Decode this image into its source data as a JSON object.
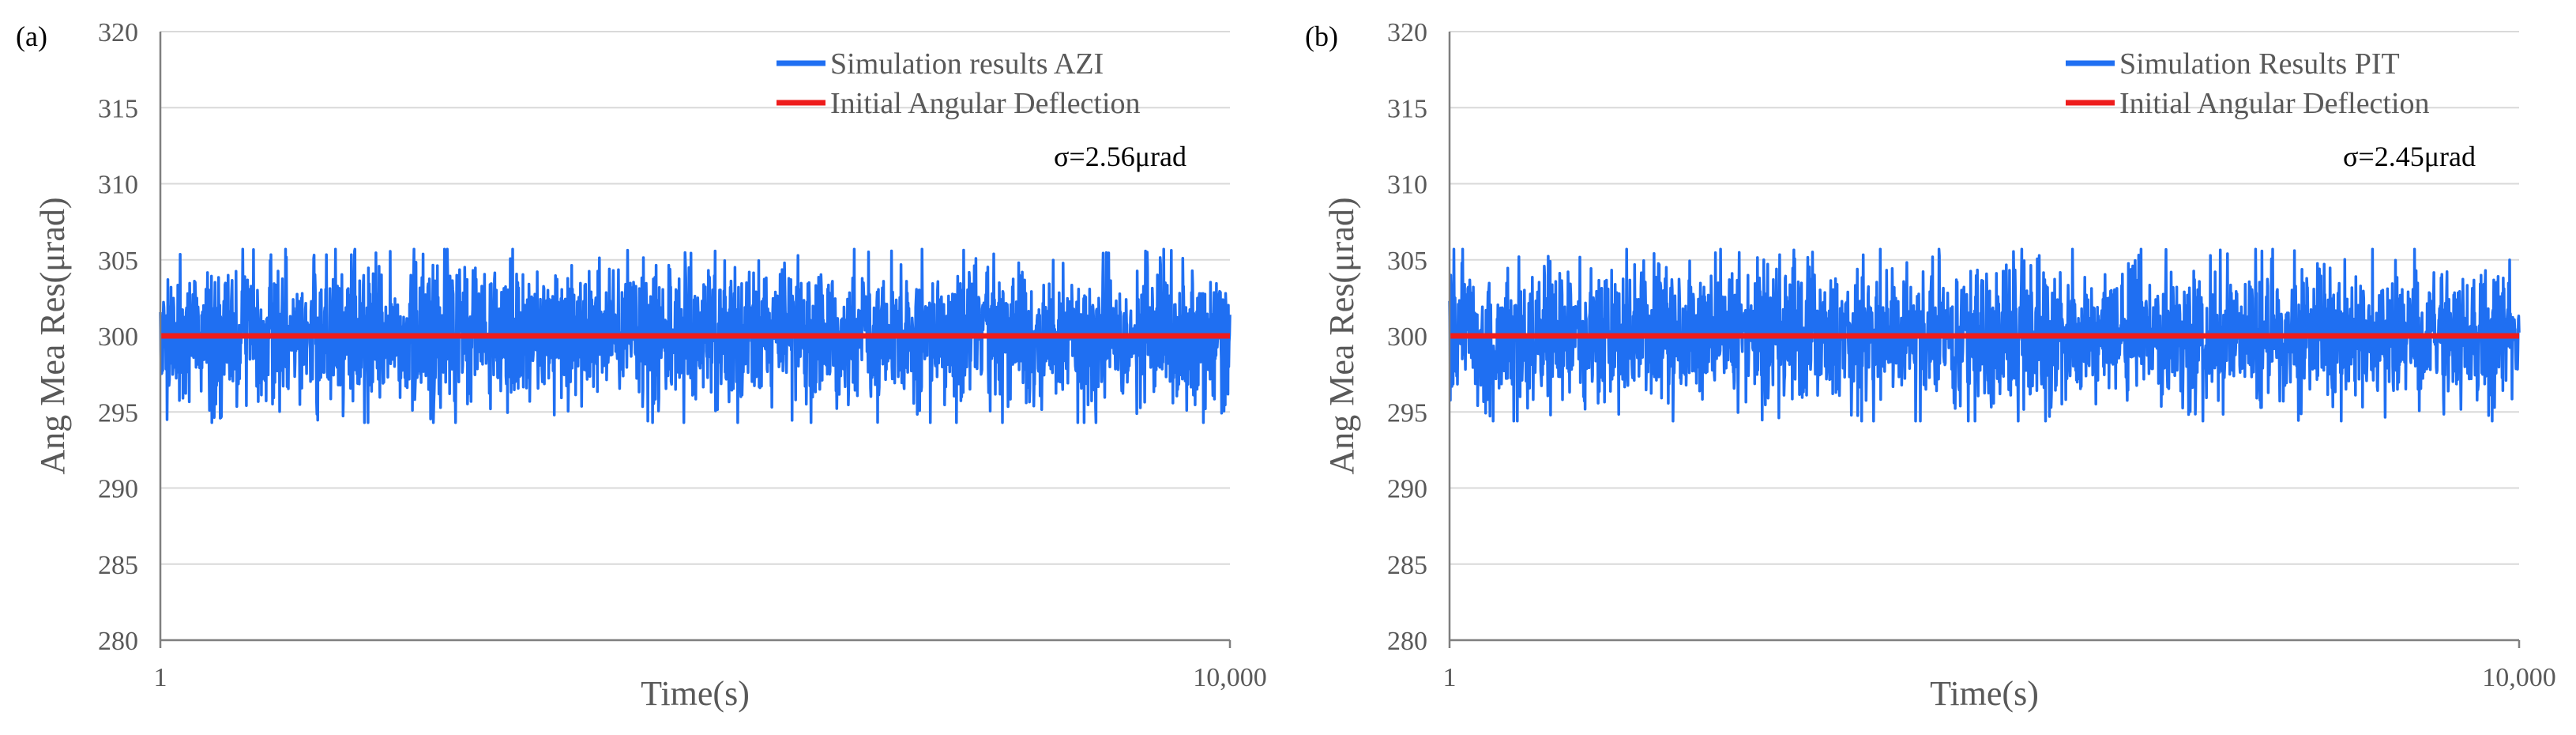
{
  "colors": {
    "simulation": "#1f6ff2",
    "initial": "#ee1c1c",
    "grid": "#d9d9d9",
    "axis": "#7f7f7f"
  },
  "chart_data": [
    {
      "type": "line",
      "panel_label": "(a)",
      "title": "",
      "xlabel": "Time(s)",
      "ylabel": "Ang Mea Res(μrad)",
      "xlim": [
        1,
        10000
      ],
      "x_tick_labels": [
        "1",
        "10,000"
      ],
      "ylim": [
        280,
        320
      ],
      "y_ticks": [
        280,
        285,
        290,
        295,
        300,
        305,
        310,
        315,
        320
      ],
      "grid": true,
      "legend_position": "top-right",
      "series": [
        {
          "name": "Simulation results AZI",
          "kind": "noise",
          "mean": 300,
          "std": 2.56,
          "min": 294.3,
          "max": 305.7,
          "points": 10000,
          "color": "#1f6ff2"
        },
        {
          "name": "Initial Angular Deflection",
          "kind": "constant",
          "value": 300,
          "color": "#ee1c1c"
        }
      ],
      "annotation": "σ=2.56μrad"
    },
    {
      "type": "line",
      "panel_label": "(b)",
      "title": "",
      "xlabel": "Time(s)",
      "ylabel": "Ang Mea Res(μrad)",
      "xlim": [
        1,
        10000
      ],
      "x_tick_labels": [
        "1",
        "10,000"
      ],
      "ylim": [
        280,
        320
      ],
      "y_ticks": [
        280,
        285,
        290,
        295,
        300,
        305,
        310,
        315,
        320
      ],
      "grid": true,
      "legend_position": "top-right",
      "series": [
        {
          "name": "Simulation Results PIT",
          "kind": "noise",
          "mean": 300,
          "std": 2.45,
          "min": 294.4,
          "max": 305.7,
          "points": 10000,
          "color": "#1f6ff2"
        },
        {
          "name": "Initial Angular Deflection",
          "kind": "constant",
          "value": 300,
          "color": "#ee1c1c"
        }
      ],
      "annotation": "σ=2.45μrad"
    }
  ]
}
